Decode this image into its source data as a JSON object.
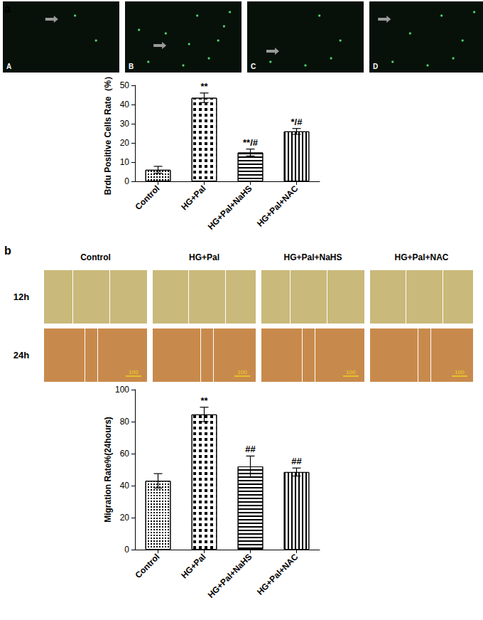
{
  "panel_labels": [
    "a",
    "b"
  ],
  "fluorescence_panel": {
    "image_labels": [
      "A",
      "B",
      "C",
      "D"
    ]
  },
  "scratch_panel": {
    "columns": [
      "Control",
      "HG+Pal",
      "HG+Pal+NaHS",
      "HG+Pal+NAC"
    ],
    "rows": [
      "12h",
      "24h"
    ],
    "scale_bar_label": "100"
  },
  "chart_data": [
    {
      "type": "bar",
      "y_label": "Brdu Positive Cells Rate（%）",
      "categories": [
        "Control",
        "HG+Pal",
        "HG+Pal+NaHS",
        "HG+Pal+NAC"
      ],
      "values": [
        6,
        43.5,
        15,
        26
      ],
      "errors": [
        1.8,
        2.5,
        1.8,
        1.5
      ],
      "annotations": [
        null,
        "**",
        "**/#",
        "*/#"
      ],
      "color": "#000000",
      "ylim": [
        0,
        50
      ],
      "yticks": [
        0,
        10,
        20,
        30,
        40,
        50
      ],
      "grid": false
    },
    {
      "type": "bar",
      "y_label": "Migration Rate%(24hours)",
      "categories": [
        "Control",
        "HG+Pal",
        "HG+Pal+NaHS",
        "HG+Pal+NAC"
      ],
      "values": [
        43,
        84.5,
        52,
        48.5
      ],
      "errors": [
        4.5,
        4.5,
        6.5,
        2.5
      ],
      "annotations": [
        null,
        "**",
        "##",
        "##"
      ],
      "color": "#000000",
      "ylim": [
        0,
        100
      ],
      "yticks": [
        0,
        20,
        40,
        60,
        80,
        100
      ],
      "grid": false
    }
  ]
}
